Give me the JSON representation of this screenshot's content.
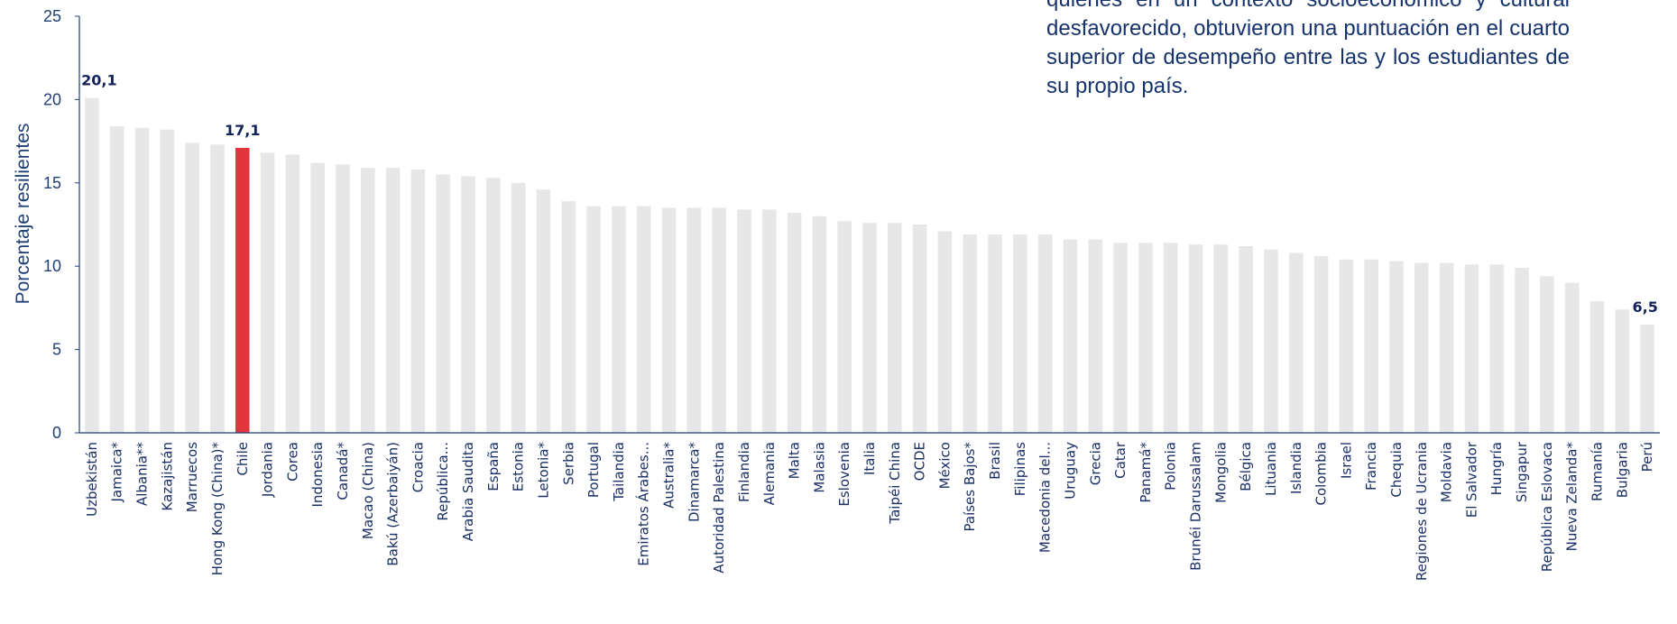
{
  "note": {
    "text": "quienes en un contexto socioeconómico y cultural desfavorecido, obtuvieron una puntuación en el cuarto superior de desempeño entre las y los estudiantes de su propio país."
  },
  "chart_data": {
    "type": "bar",
    "title": "",
    "xlabel": "",
    "ylabel": "Porcentaje resilientes",
    "ylim": [
      0,
      25
    ],
    "yticks": [
      0,
      5,
      10,
      15,
      20,
      25
    ],
    "grid": false,
    "highlight_color": "#e1373c",
    "bar_color": "#e7e7e7",
    "axis_color": "#1f3f78",
    "categories": [
      "Uzbekistán",
      "Jamaica*",
      "Albania**",
      "Kazajistán",
      "Marruecos",
      "Hong Kong (China)*",
      "Chile",
      "Jordania",
      "Corea",
      "Indonesia",
      "Canadá*",
      "Macao (China)",
      "Bakú (Azerbaiyán)",
      "Croacia",
      "República...",
      "Arabia Saudita",
      "España",
      "Estonia",
      "Letonia*",
      "Serbia",
      "Portugal",
      "Tailandia",
      "Emiratos Árabes...",
      "Australia*",
      "Dinamarca*",
      "Autoridad Palestina",
      "Finlandia",
      "Alemania",
      "Malta",
      "Malasia",
      "Eslovenia",
      "Italia",
      "Taipéi China",
      "OCDE",
      "México",
      "Países Bajos*",
      "Brasil",
      "Filipinas",
      "Macedonia del...",
      "Uruguay",
      "Grecia",
      "Catar",
      "Panamá*",
      "Polonia",
      "Brunéi Darussalam",
      "Mongolia",
      "Bélgica",
      "Lituania",
      "Islandia",
      "Colombia",
      "Israel",
      "Francia",
      "Chequia",
      "Regiones de Ucrania",
      "Moldavia",
      "El Salvador",
      "Hungría",
      "Singapur",
      "República Eslovaca",
      "Nueva Zelanda*",
      "Rumanía",
      "Bulgaria",
      "Perú"
    ],
    "values": [
      20.1,
      18.4,
      18.3,
      18.2,
      17.4,
      17.3,
      17.1,
      16.8,
      16.7,
      16.2,
      16.1,
      15.9,
      15.9,
      15.8,
      15.5,
      15.4,
      15.3,
      15.0,
      14.6,
      13.9,
      13.6,
      13.6,
      13.6,
      13.5,
      13.5,
      13.5,
      13.4,
      13.4,
      13.2,
      13.0,
      12.7,
      12.6,
      12.6,
      12.5,
      12.1,
      11.9,
      11.9,
      11.9,
      11.9,
      11.6,
      11.6,
      11.4,
      11.4,
      11.4,
      11.3,
      11.3,
      11.2,
      11.0,
      10.8,
      10.6,
      10.4,
      10.4,
      10.3,
      10.2,
      10.2,
      10.1,
      10.1,
      9.9,
      9.4,
      9.0,
      7.9,
      7.4,
      6.5
    ],
    "highlight_index": 6,
    "data_labels": [
      {
        "index": 0,
        "text": "20,1"
      },
      {
        "index": 6,
        "text": "17,1"
      },
      {
        "index": 62,
        "text": "6,5"
      }
    ]
  }
}
